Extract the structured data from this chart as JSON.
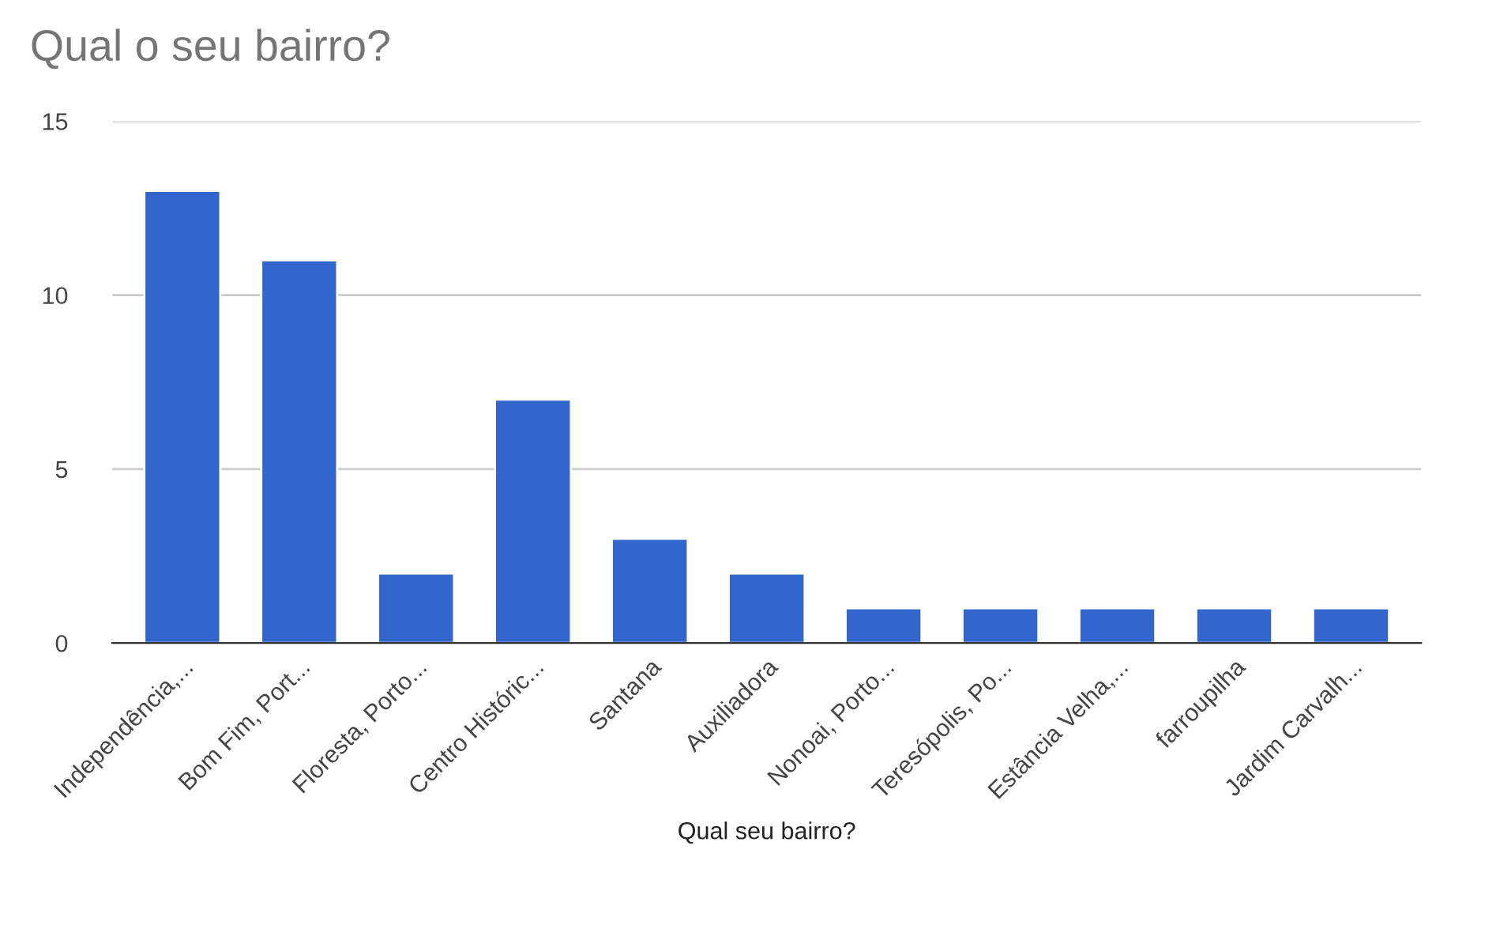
{
  "chart_data": {
    "type": "bar",
    "title": "Qual o seu bairro?",
    "xlabel": "Qual seu bairro?",
    "categories": [
      "Independência,...",
      "Bom Fim, Port...",
      "Floresta, Porto...",
      "Centro Históric...",
      "Santana",
      "Auxiliadora",
      "Nonoai, Porto...",
      "Teresópolis, Po...",
      "Estância Velha,...",
      "farroupilha",
      "Jardim Carvalh..."
    ],
    "series": [
      {
        "color": "#3366cc",
        "values": [
          13,
          11,
          2,
          7,
          3,
          2,
          1,
          1,
          1,
          1,
          1
        ]
      }
    ],
    "ylim": [
      0,
      15
    ],
    "yticks": [
      0,
      5,
      10,
      15
    ],
    "grid": "y"
  }
}
